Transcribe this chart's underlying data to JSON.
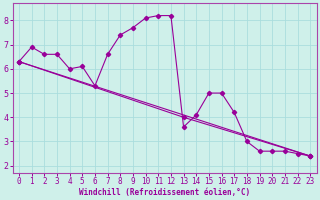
{
  "xlabel": "Windchill (Refroidissement éolien,°C)",
  "background_color": "#cff0ea",
  "grid_color": "#aadddd",
  "line_color": "#990099",
  "spine_color": "#aa44aa",
  "xlim": [
    -0.5,
    23.5
  ],
  "ylim": [
    1.7,
    8.7
  ],
  "xticks": [
    0,
    1,
    2,
    3,
    4,
    5,
    6,
    7,
    8,
    9,
    10,
    11,
    12,
    13,
    14,
    15,
    16,
    17,
    18,
    19,
    20,
    21,
    22,
    23
  ],
  "yticks": [
    2,
    3,
    4,
    5,
    6,
    7,
    8
  ],
  "series1_x": [
    0,
    1,
    2,
    3,
    4,
    5,
    6,
    7,
    8,
    9,
    10,
    11,
    12,
    13,
    14,
    15,
    16,
    17,
    18,
    19,
    20,
    21,
    22,
    23
  ],
  "series1_y": [
    6.3,
    6.9,
    6.6,
    6.6,
    6.0,
    6.1,
    5.3,
    6.6,
    7.4,
    7.7,
    8.1,
    8.2,
    8.2,
    3.6,
    4.1,
    5.0,
    5.0,
    4.2,
    3.0,
    2.6,
    2.6,
    2.6,
    2.5,
    2.4
  ],
  "series2_x": [
    0,
    23
  ],
  "series2_y": [
    6.3,
    2.4
  ],
  "series3_x": [
    0,
    13,
    23
  ],
  "series3_y": [
    6.3,
    4.0,
    2.4
  ],
  "tick_fontsize": 5.5,
  "xlabel_fontsize": 5.5
}
